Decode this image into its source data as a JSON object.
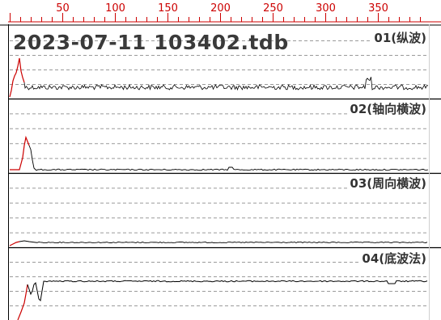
{
  "file": {
    "name": "2023-07-11 103402.tdb"
  },
  "ruler": {
    "ticks": [
      50,
      100,
      150,
      200,
      250,
      300,
      350
    ],
    "color": "#cc0000"
  },
  "channels": [
    {
      "label": "01(纵波)",
      "pulse_color": "#cc0000",
      "trace_color": "#000000"
    },
    {
      "label": "02(轴向横波)",
      "pulse_color": "#cc0000",
      "trace_color": "#000000"
    },
    {
      "label": "03(周向横波)",
      "pulse_color": "#cc0000",
      "trace_color": "#000000"
    },
    {
      "label": "04(底波法)",
      "pulse_color": "#cc0000",
      "trace_color": "#000000"
    }
  ],
  "colors": {
    "grid": "#9a9a9a",
    "separator": "#000000",
    "background": "#ffffff"
  }
}
